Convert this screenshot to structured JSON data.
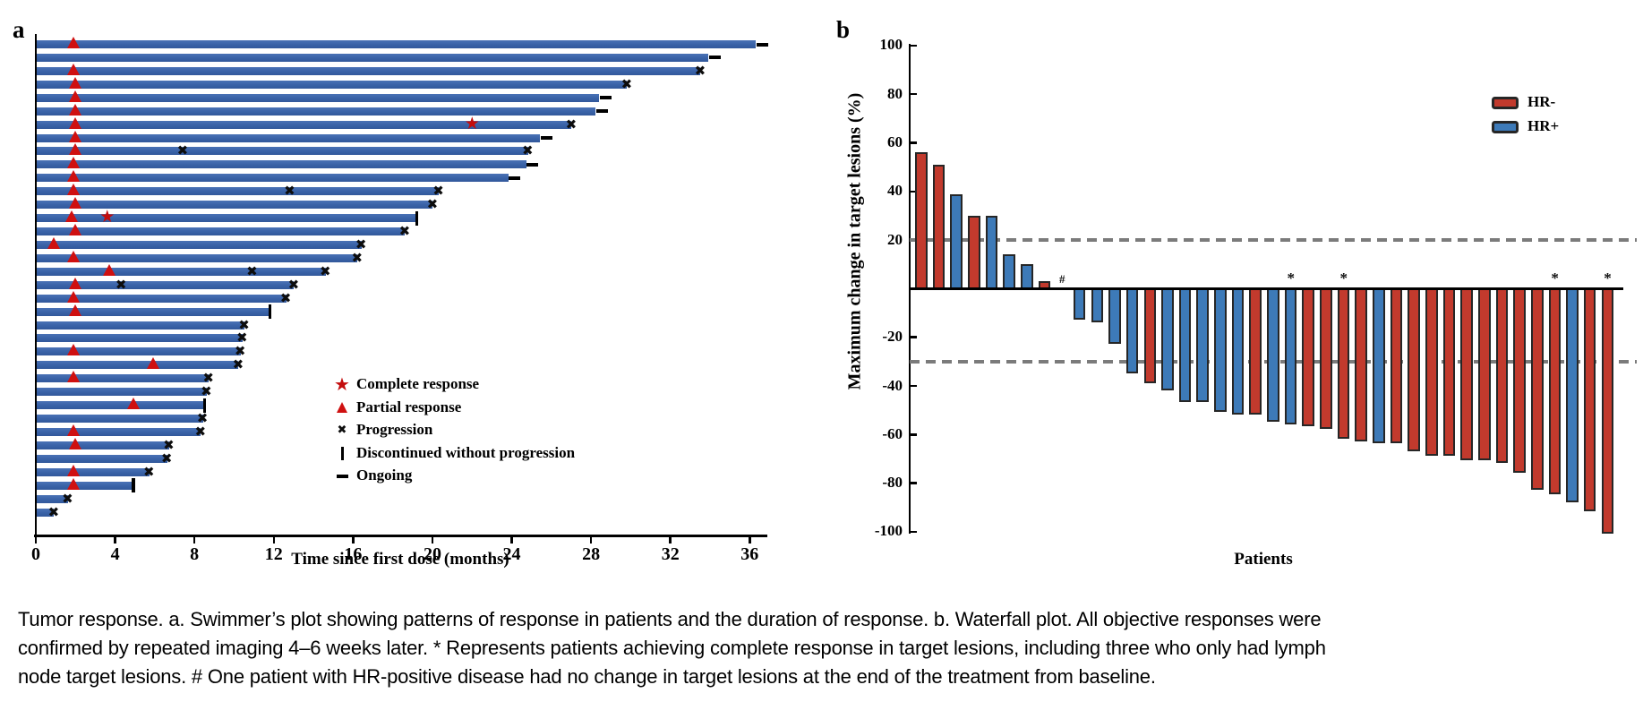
{
  "figure": {
    "panel_a_letter": "a",
    "panel_b_letter": "b"
  },
  "colors": {
    "swimmer_bar": "#3a63a8",
    "marker_red": "#cf1010",
    "marker_black": "#0d0d0d",
    "hr_negative": "#c23a2d",
    "hr_positive": "#3d7ab8",
    "bar_border": "#262626",
    "dashed_line": "#7b7b7b"
  },
  "caption": {
    "lines": [
      "Tumor response. a. Swimmer’s plot showing patterns of response in patients and the duration of response. b. Waterfall plot. All objective responses were",
      "confirmed by repeated imaging 4–6 weeks later. * Represents patients achieving complete response in target lesions, including three who only had lymph",
      "node target lesions. # One patient with HR-positive disease had no change in target lesions at the end of the treatment from baseline."
    ]
  },
  "chart_data": [
    {
      "type": "bar",
      "subtype": "swimmer",
      "orientation": "horizontal",
      "panel": "a",
      "xlabel": "Time since first dose (months)",
      "xlim": [
        0,
        37
      ],
      "xticks": [
        0,
        4,
        8,
        12,
        16,
        20,
        24,
        28,
        32,
        36
      ],
      "grid": false,
      "bar_color": "#3a63a8",
      "legend_position": "center-right",
      "legend": [
        {
          "symbol": "star",
          "label": "Complete response"
        },
        {
          "symbol": "triangle",
          "label": "Partial response"
        },
        {
          "symbol": "x",
          "label": "Progression"
        },
        {
          "symbol": "bar",
          "label": "Discontinued without progression"
        },
        {
          "symbol": "dash",
          "label": "Ongoing"
        }
      ],
      "patients": [
        {
          "duration": 36.3,
          "partial_response_at": 1.9,
          "end": "ongoing"
        },
        {
          "duration": 33.9,
          "end": "ongoing"
        },
        {
          "duration": 33.5,
          "partial_response_at": 1.9,
          "end": "progression"
        },
        {
          "duration": 29.8,
          "partial_response_at": 2.0,
          "end": "progression"
        },
        {
          "duration": 28.4,
          "partial_response_at": 2.0,
          "end": "ongoing"
        },
        {
          "duration": 28.2,
          "partial_response_at": 2.0,
          "end": "ongoing"
        },
        {
          "duration": 27.0,
          "partial_response_at": 2.0,
          "complete_response_at": 22.0,
          "end": "progression"
        },
        {
          "duration": 25.4,
          "partial_response_at": 2.0,
          "end": "ongoing"
        },
        {
          "duration": 24.8,
          "partial_response_at": 2.0,
          "progression_at": [
            7.4
          ],
          "end": "progression"
        },
        {
          "duration": 24.7,
          "partial_response_at": 1.9,
          "end": "ongoing"
        },
        {
          "duration": 23.8,
          "partial_response_at": 1.9,
          "end": "ongoing"
        },
        {
          "duration": 20.3,
          "partial_response_at": 1.9,
          "progression_at": [
            12.8
          ],
          "end": "progression"
        },
        {
          "duration": 20.0,
          "partial_response_at": 2.0,
          "end": "progression"
        },
        {
          "duration": 19.2,
          "partial_response_at": 1.8,
          "complete_response_at": 3.6,
          "end": "discontinued"
        },
        {
          "duration": 18.6,
          "partial_response_at": 2.0,
          "end": "progression"
        },
        {
          "duration": 16.4,
          "partial_response_at": 0.9,
          "end": "progression"
        },
        {
          "duration": 16.2,
          "partial_response_at": 1.9,
          "end": "progression"
        },
        {
          "duration": 14.6,
          "partial_response_at": 3.7,
          "progression_at": [
            10.9
          ],
          "end": "progression"
        },
        {
          "duration": 13.0,
          "partial_response_at": 2.0,
          "progression_at": [
            4.3
          ],
          "end": "progression"
        },
        {
          "duration": 12.6,
          "partial_response_at": 1.9,
          "end": "progression"
        },
        {
          "duration": 11.8,
          "partial_response_at": 2.0,
          "end": "discontinued"
        },
        {
          "duration": 10.5,
          "end": "progression"
        },
        {
          "duration": 10.4,
          "end": "progression"
        },
        {
          "duration": 10.3,
          "partial_response_at": 1.9,
          "end": "progression"
        },
        {
          "duration": 10.2,
          "partial_response_at": 5.9,
          "end": "progression"
        },
        {
          "duration": 8.7,
          "partial_response_at": 1.9,
          "end": "progression"
        },
        {
          "duration": 8.6,
          "end": "progression"
        },
        {
          "duration": 8.5,
          "partial_response_at": 4.9,
          "end": "discontinued"
        },
        {
          "duration": 8.4,
          "end": "progression"
        },
        {
          "duration": 8.3,
          "partial_response_at": 1.9,
          "end": "progression"
        },
        {
          "duration": 6.7,
          "partial_response_at": 2.0,
          "end": "progression"
        },
        {
          "duration": 6.6,
          "end": "progression"
        },
        {
          "duration": 5.7,
          "partial_response_at": 1.9,
          "end": "progression"
        },
        {
          "duration": 4.9,
          "partial_response_at": 1.9,
          "end": "discontinued"
        },
        {
          "duration": 1.6,
          "end": "progression"
        },
        {
          "duration": 0.9,
          "end": "progression"
        }
      ]
    },
    {
      "type": "bar",
      "subtype": "waterfall",
      "panel": "b",
      "ylabel": "Maximum change in target lesions (%)",
      "xlabel": "Patients",
      "ylim": [
        -100,
        100
      ],
      "yticks": [
        100,
        80,
        60,
        40,
        20,
        0,
        -20,
        -40,
        -60,
        -80,
        -100
      ],
      "reference_lines": [
        20,
        -30
      ],
      "grid": false,
      "legend_position": "top-right",
      "legend": [
        {
          "label": "HR-",
          "color": "#c23a2d"
        },
        {
          "label": "HR+",
          "color": "#3d7ab8"
        }
      ],
      "patients": [
        {
          "value": 56,
          "group": "HR-"
        },
        {
          "value": 51,
          "group": "HR-"
        },
        {
          "value": 39,
          "group": "HR+"
        },
        {
          "value": 30,
          "group": "HR-"
        },
        {
          "value": 30,
          "group": "HR+"
        },
        {
          "value": 14,
          "group": "HR+"
        },
        {
          "value": 10,
          "group": "HR+"
        },
        {
          "value": 3,
          "group": "HR-"
        },
        {
          "value": 0,
          "group": "HR+",
          "mark": "#"
        },
        {
          "value": -12,
          "group": "HR+"
        },
        {
          "value": -13,
          "group": "HR+"
        },
        {
          "value": -22,
          "group": "HR+"
        },
        {
          "value": -34,
          "group": "HR+"
        },
        {
          "value": -38,
          "group": "HR-"
        },
        {
          "value": -41,
          "group": "HR+"
        },
        {
          "value": -46,
          "group": "HR+"
        },
        {
          "value": -46,
          "group": "HR+"
        },
        {
          "value": -50,
          "group": "HR+"
        },
        {
          "value": -51,
          "group": "HR+"
        },
        {
          "value": -51,
          "group": "HR-"
        },
        {
          "value": -54,
          "group": "HR+"
        },
        {
          "value": -55,
          "group": "HR+",
          "mark": "*"
        },
        {
          "value": -56,
          "group": "HR-"
        },
        {
          "value": -57,
          "group": "HR-"
        },
        {
          "value": -61,
          "group": "HR-",
          "mark": "*"
        },
        {
          "value": -62,
          "group": "HR-"
        },
        {
          "value": -63,
          "group": "HR+"
        },
        {
          "value": -63,
          "group": "HR-"
        },
        {
          "value": -66,
          "group": "HR-"
        },
        {
          "value": -68,
          "group": "HR-"
        },
        {
          "value": -68,
          "group": "HR-"
        },
        {
          "value": -70,
          "group": "HR-"
        },
        {
          "value": -70,
          "group": "HR-"
        },
        {
          "value": -71,
          "group": "HR-"
        },
        {
          "value": -75,
          "group": "HR-"
        },
        {
          "value": -82,
          "group": "HR-"
        },
        {
          "value": -84,
          "group": "HR-",
          "mark": "*"
        },
        {
          "value": -87,
          "group": "HR+"
        },
        {
          "value": -91,
          "group": "HR-"
        },
        {
          "value": -100,
          "group": "HR-",
          "mark": "*"
        }
      ]
    }
  ]
}
